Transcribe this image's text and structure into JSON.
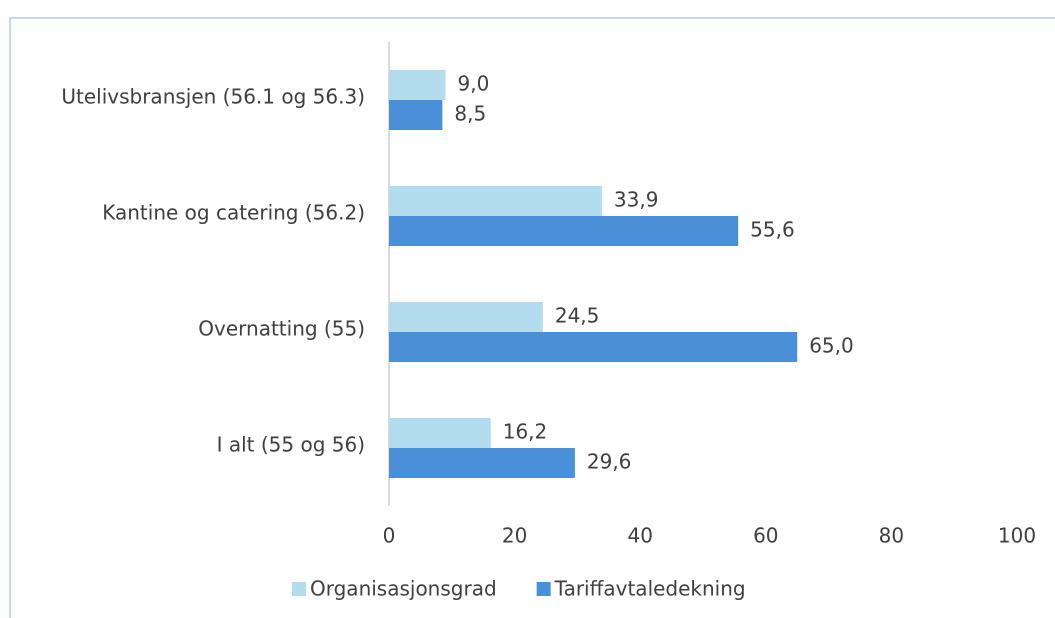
{
  "chart_data": {
    "type": "hbar",
    "categories": [
      "Utelivsbransjen (56.1 og 56.3)",
      "Kantine og catering (56.2)",
      "Overnatting (55)",
      "I alt (55 og 56)"
    ],
    "series": [
      {
        "name": "Organisasjonsgrad",
        "color": "#b3dcee",
        "values": [
          9.0,
          33.9,
          24.5,
          16.2
        ],
        "value_labels": [
          "9,0",
          "33,9",
          "24,5",
          "16,2"
        ]
      },
      {
        "name": "Tariffavtaledekning",
        "color": "#4a90d9",
        "values": [
          8.5,
          55.6,
          65.0,
          29.6
        ],
        "value_labels": [
          "8,5",
          "55,6",
          "65,0",
          "29,6"
        ]
      }
    ],
    "xlim": [
      0,
      100
    ],
    "xticks": [
      0,
      20,
      40,
      60,
      80,
      100
    ],
    "grid": false,
    "legend": "bottom"
  }
}
